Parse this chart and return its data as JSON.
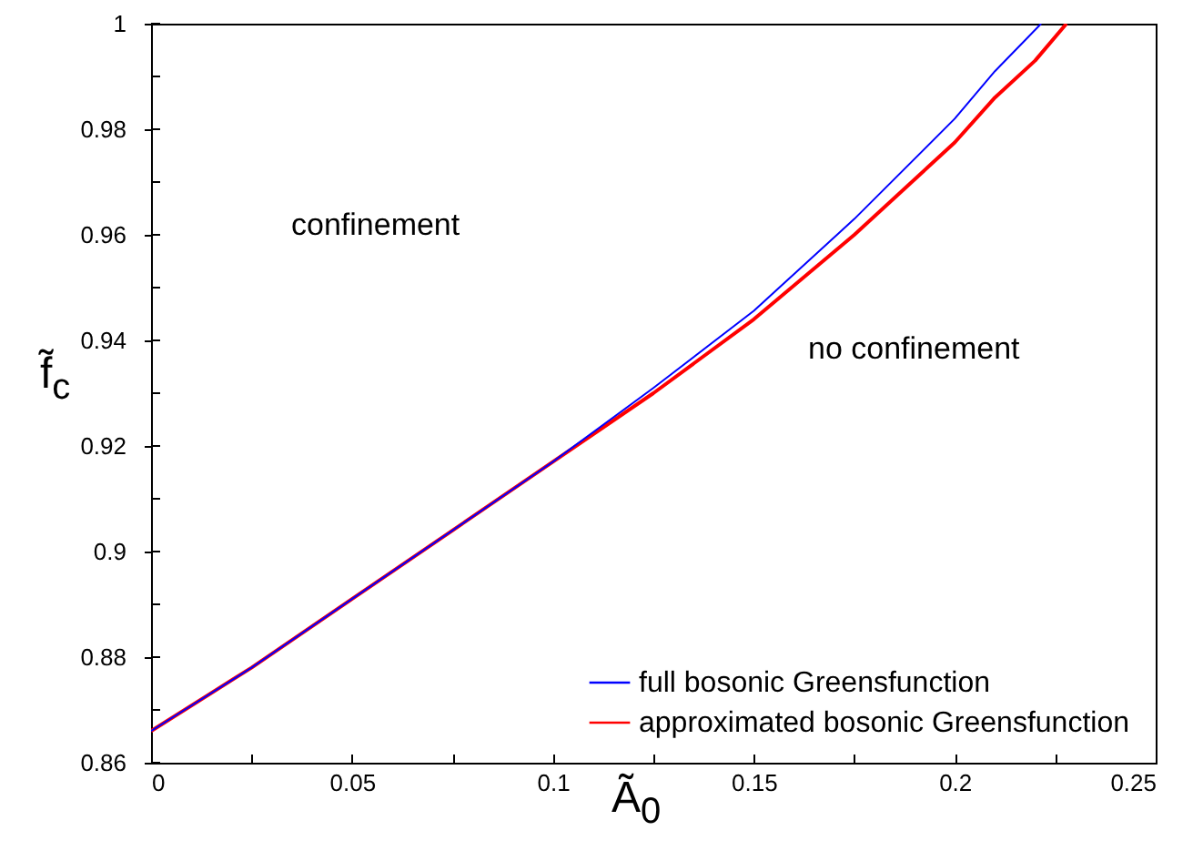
{
  "chart_data": {
    "type": "line",
    "xlabel": "Ã$_{0}$",
    "ylabel": "f̃$_{c}$",
    "xlim": [
      0,
      0.25
    ],
    "ylim": [
      0.86,
      1
    ],
    "xticks": [
      0,
      {
        "value": 0.025,
        "label": null
      },
      0.05,
      {
        "value": 0.075,
        "label": null
      },
      0.1,
      {
        "value": 0.125,
        "label": null
      },
      0.15,
      {
        "value": 0.175,
        "label": null
      },
      0.2,
      {
        "value": 0.225,
        "label": null
      },
      0.25
    ],
    "yticks": [
      0.86,
      {
        "value": 0.87,
        "label": null
      },
      0.88,
      {
        "value": 0.89,
        "label": null
      },
      0.9,
      {
        "value": 0.91,
        "label": null
      },
      0.92,
      {
        "value": 0.93,
        "label": null
      },
      0.94,
      {
        "value": 0.95,
        "label": null
      },
      0.96,
      {
        "value": 0.97,
        "label": null
      },
      0.98,
      {
        "value": 0.99,
        "label": null
      },
      1
    ],
    "series": [
      {
        "name": "full bosonic Greensfunction",
        "color": "#0000ff",
        "x": [
          0,
          0.025,
          0.05,
          0.075,
          0.1,
          0.125,
          0.15,
          0.175,
          0.2,
          0.21,
          0.2215
        ],
        "values": [
          0.866,
          0.878,
          0.891,
          0.904,
          0.917,
          0.931,
          0.9456,
          0.963,
          0.982,
          0.991,
          1.0
        ]
      },
      {
        "name": "approximated bosonic Greensfunction",
        "color": "#ff0000",
        "x": [
          0,
          0.025,
          0.05,
          0.075,
          0.1,
          0.125,
          0.15,
          0.175,
          0.2,
          0.21,
          0.22,
          0.2278
        ],
        "values": [
          0.866,
          0.878,
          0.891,
          0.904,
          0.917,
          0.93,
          0.944,
          0.96,
          0.9775,
          0.986,
          0.993,
          1.0
        ]
      }
    ],
    "annotations": [
      "confinement",
      "no confinement"
    ],
    "legend": "bottom right",
    "grid": false,
    "marker": "none",
    "line_style": "solid"
  }
}
